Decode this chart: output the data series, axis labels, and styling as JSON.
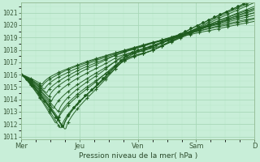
{
  "bg_color": "#c8eed8",
  "grid_color_major": "#a8d8b8",
  "grid_color_minor": "#b8e8c8",
  "line_color": "#1e5c1e",
  "ylabel": "Pression niveau de la mer( hPa )",
  "ylim": [
    1011,
    1021.5
  ],
  "yticks": [
    1011,
    1012,
    1013,
    1014,
    1015,
    1016,
    1017,
    1018,
    1019,
    1020,
    1021
  ],
  "xtick_labels": [
    "Mer",
    "Jeu",
    "Ven",
    "Sam",
    "D"
  ],
  "xtick_positions": [
    0.0,
    0.25,
    0.5,
    0.75,
    1.0
  ],
  "figsize": [
    3.2,
    2.0
  ],
  "dpi": 100
}
